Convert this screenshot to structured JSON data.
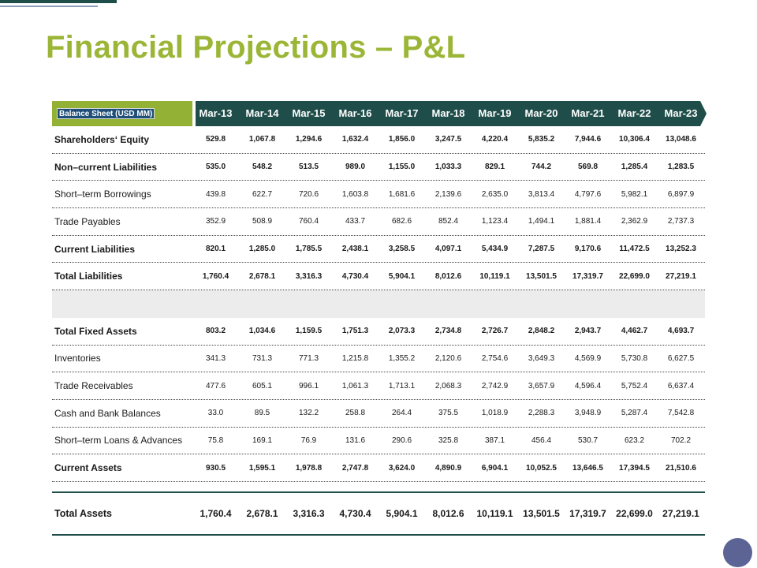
{
  "title": "Financial Projections – P&L",
  "table": {
    "header_label": "Balance Sheet (USD MM)",
    "years": [
      "Mar-13",
      "Mar-14",
      "Mar-15",
      "Mar-16",
      "Mar-17",
      "Mar-18",
      "Mar-19",
      "Mar-20",
      "Mar-21",
      "Mar-22",
      "Mar-23"
    ],
    "rows": [
      {
        "label": "Shareholders‘ Equity",
        "bold": true,
        "values": [
          "529.8",
          "1,067.8",
          "1,294.6",
          "1,632.4",
          "1,856.0",
          "3,247.5",
          "4,220.4",
          "5,835.2",
          "7,944.6",
          "10,306.4",
          "13,048.6"
        ]
      },
      {
        "label": "Non–current Liabilities",
        "bold": true,
        "values": [
          "535.0",
          "548.2",
          "513.5",
          "989.0",
          "1,155.0",
          "1,033.3",
          "829.1",
          "744.2",
          "569.8",
          "1,285.4",
          "1,283.5"
        ]
      },
      {
        "label": "Short–term Borrowings",
        "bold": false,
        "values": [
          "439.8",
          "622.7",
          "720.6",
          "1,603.8",
          "1,681.6",
          "2,139.6",
          "2,635.0",
          "3,813.4",
          "4,797.6",
          "5,982.1",
          "6,897.9"
        ]
      },
      {
        "label": "Trade Payables",
        "bold": false,
        "values": [
          "352.9",
          "508.9",
          "760.4",
          "433.7",
          "682.6",
          "852.4",
          "1,123.4",
          "1,494.1",
          "1,881.4",
          "2,362.9",
          "2,737.3"
        ]
      },
      {
        "label": "Current Liabilities",
        "bold": true,
        "values": [
          "820.1",
          "1,285.0",
          "1,785.5",
          "2,438.1",
          "3,258.5",
          "4,097.1",
          "5,434.9",
          "7,287.5",
          "9,170.6",
          "11,472.5",
          "13,252.3"
        ]
      },
      {
        "label": "Total Liabilities",
        "bold": true,
        "values": [
          "1,760.4",
          "2,678.1",
          "3,316.3",
          "4,730.4",
          "5,904.1",
          "8,012.6",
          "10,119.1",
          "13,501.5",
          "17,319.7",
          "22,699.0",
          "27,219.1"
        ]
      },
      {
        "label": "Total Fixed Assets",
        "bold": true,
        "values": [
          "803.2",
          "1,034.6",
          "1,159.5",
          "1,751.3",
          "2,073.3",
          "2,734.8",
          "2,726.7",
          "2,848.2",
          "2,943.7",
          "4,462.7",
          "4,693.7"
        ]
      },
      {
        "label": "Inventories",
        "bold": false,
        "values": [
          "341.3",
          "731.3",
          "771.3",
          "1,215.8",
          "1,355.2",
          "2,120.6",
          "2,754.6",
          "3,649.3",
          "4,569.9",
          "5,730.8",
          "6,627.5"
        ]
      },
      {
        "label": "Trade Receivables",
        "bold": false,
        "values": [
          "477.6",
          "605.1",
          "996.1",
          "1,061.3",
          "1,713.1",
          "2,068.3",
          "2,742.9",
          "3,657.9",
          "4,596.4",
          "5,752.4",
          "6,637.4"
        ]
      },
      {
        "label": "Cash and Bank Balances",
        "bold": false,
        "values": [
          "33.0",
          "89.5",
          "132.2",
          "258.8",
          "264.4",
          "375.5",
          "1,018.9",
          "2,288.3",
          "3,948.9",
          "5,287.4",
          "7,542.8"
        ]
      },
      {
        "label": "Short–term Loans & Advances",
        "bold": false,
        "values": [
          "75.8",
          "169.1",
          "76.9",
          "131.6",
          "290.6",
          "325.8",
          "387.1",
          "456.4",
          "530.7",
          "623.2",
          "702.2"
        ]
      },
      {
        "label": "Current Assets",
        "bold": true,
        "values": [
          "930.5",
          "1,595.1",
          "1,978.8",
          "2,747.8",
          "3,624.0",
          "4,890.9",
          "6,904.1",
          "10,052.5",
          "13,646.5",
          "17,394.5",
          "21,510.6"
        ]
      }
    ],
    "total": {
      "label": "Total Assets",
      "values": [
        "1,760.4",
        "2,678.1",
        "3,316.3",
        "4,730.4",
        "5,904.1",
        "8,012.6",
        "10,119.1",
        "13,501.5",
        "17,319.7",
        "22,699.0",
        "27,219.1"
      ]
    }
  },
  "colors": {
    "title": "#9bb637",
    "header_green": "#93b135",
    "header_dark": "#1f4e4a",
    "circle": "#5c6496"
  }
}
